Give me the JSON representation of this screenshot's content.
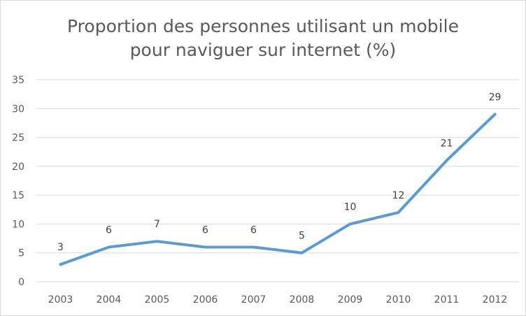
{
  "chart_data": {
    "type": "line",
    "title_lines": [
      "Proportion des personnes utilisant un mobile",
      "pour naviguer sur internet (%)"
    ],
    "categories": [
      "2003",
      "2004",
      "2005",
      "2006",
      "2007",
      "2008",
      "2009",
      "2010",
      "2011",
      "2012"
    ],
    "series": [
      {
        "values": [
          3,
          6,
          7,
          6,
          6,
          5,
          10,
          12,
          21,
          29
        ],
        "color": "#5b9bd5"
      }
    ],
    "ylim": [
      0,
      35
    ],
    "yticks": [
      0,
      5,
      10,
      15,
      20,
      25,
      30,
      35
    ],
    "grid": true,
    "legend": "none",
    "data_labels": true
  }
}
